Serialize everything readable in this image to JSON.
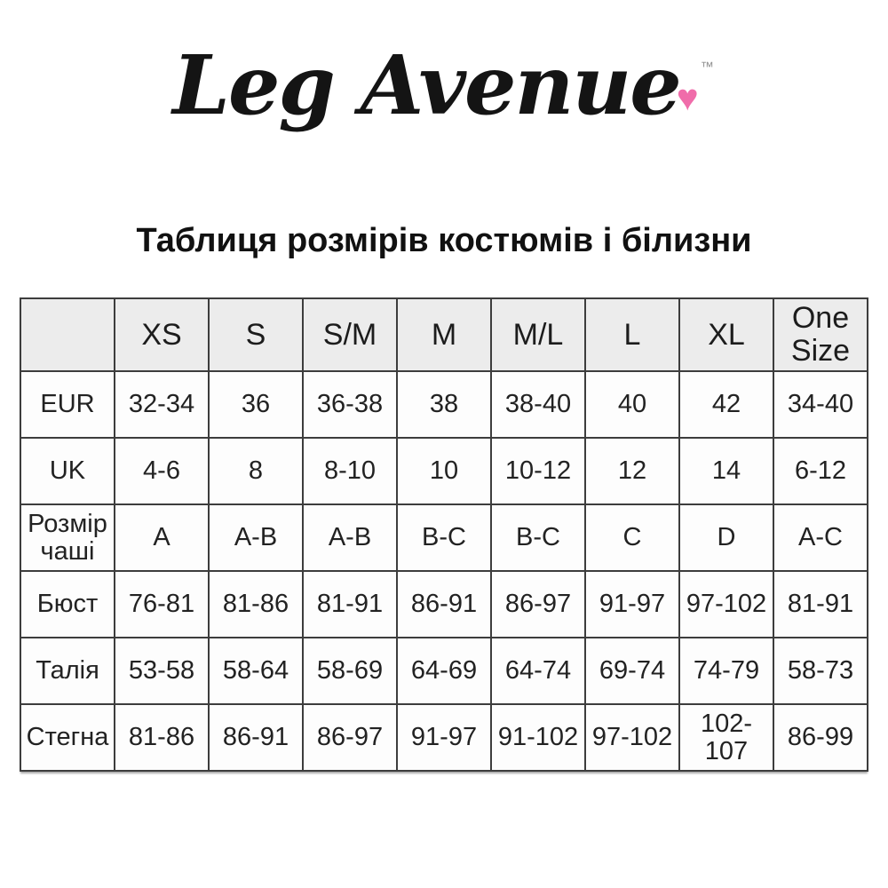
{
  "logo": {
    "brand": "Leg Avenue",
    "trademark": "™",
    "heart_glyph": "♥",
    "heart_color": "#f06caa"
  },
  "title": "Таблиця розмірів костюмів і білизни",
  "size_table": {
    "columns": [
      "",
      "XS",
      "S",
      "S/M",
      "M",
      "M/L",
      "L",
      "XL",
      "One Size"
    ],
    "rows": [
      {
        "label": "EUR",
        "values": [
          "32-34",
          "36",
          "36-38",
          "38",
          "38-40",
          "40",
          "42",
          "34-40"
        ]
      },
      {
        "label": "UK",
        "values": [
          "4-6",
          "8",
          "8-10",
          "10",
          "10-12",
          "12",
          "14",
          "6-12"
        ]
      },
      {
        "label": "Розмір чаші",
        "values": [
          "A",
          "A-B",
          "A-B",
          "B-C",
          "B-C",
          "C",
          "D",
          "A-C"
        ]
      },
      {
        "label": "Бюст",
        "values": [
          "76-81",
          "81-86",
          "81-91",
          "86-91",
          "86-97",
          "91-97",
          "97-102",
          "81-91"
        ]
      },
      {
        "label": "Талія",
        "values": [
          "53-58",
          "58-64",
          "58-69",
          "64-69",
          "64-74",
          "69-74",
          "74-79",
          "58-73"
        ]
      },
      {
        "label": "Стегна",
        "values": [
          "81-86",
          "86-91",
          "86-97",
          "91-97",
          "91-102",
          "97-102",
          "102-107",
          "86-99"
        ]
      }
    ],
    "colors": {
      "header_bg": "#ececec",
      "border": "#3d3d3d"
    }
  }
}
